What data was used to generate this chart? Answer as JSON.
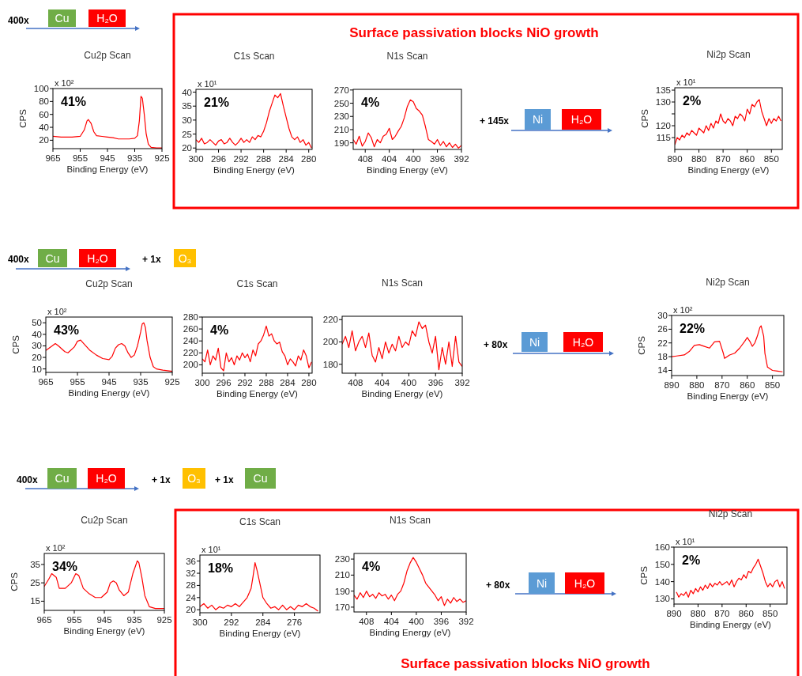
{
  "chart_data": [
    {
      "type": "other",
      "annotations": [
        "400x",
        "Cu",
        "H₂O",
        "+ 145x",
        "Ni",
        "H₂O",
        "Surface passivation blocks NiO growth"
      ]
    },
    {
      "type": "line",
      "title": "Cu2p Scan",
      "xlabel": "Binding Energy (eV)",
      "ylabel": "CPS",
      "annotations": [
        "41%",
        "x 10²"
      ],
      "xlim": [
        965,
        925
      ],
      "xticks": [
        965,
        955,
        945,
        935,
        925
      ],
      "ylim": [
        7,
        100
      ],
      "yticks": [
        20,
        40,
        60,
        80,
        100
      ],
      "x": [
        965,
        962,
        958,
        955,
        953.5,
        952.5,
        952,
        951,
        950,
        949,
        947,
        945,
        943,
        941,
        939,
        937,
        935,
        934,
        933.3,
        932.7,
        932.2,
        931.5,
        930.8,
        930,
        929,
        927,
        925
      ],
      "series": [
        {
          "color": "#ff0000",
          "values": [
            26,
            25,
            25,
            26,
            36,
            50,
            52,
            46,
            33,
            27,
            26,
            25,
            24,
            22,
            22,
            22,
            23,
            27,
            50,
            88,
            85,
            60,
            30,
            14,
            9,
            8,
            8
          ]
        }
      ]
    },
    {
      "type": "line",
      "title": "C1s Scan",
      "xlabel": "Binding Energy (eV)",
      "annotations": [
        "21%",
        "x 10¹"
      ],
      "xlim": [
        300,
        279.4
      ],
      "xticks": [
        300,
        296,
        292,
        288,
        284,
        280
      ],
      "ylim": [
        19.5,
        41
      ],
      "yticks": [
        20,
        25,
        30,
        35,
        40
      ],
      "x": [
        300,
        299.5,
        299,
        298.5,
        298,
        297.5,
        297,
        296.5,
        296,
        295.5,
        295,
        294.5,
        294,
        293.5,
        293,
        292.5,
        292,
        291.5,
        291,
        290.5,
        290,
        289.5,
        289,
        288.5,
        288,
        287.5,
        287,
        286.5,
        286,
        285.5,
        285,
        284.5,
        284,
        283.5,
        283,
        282.5,
        282,
        281.5,
        281,
        280.5,
        280,
        279.5
      ],
      "series": [
        {
          "color": "#ff0000",
          "values": [
            23,
            22,
            23.5,
            21.5,
            22,
            23,
            22,
            21,
            22.5,
            23,
            21.5,
            22,
            23.5,
            22,
            21,
            22,
            23.5,
            22,
            23,
            22,
            24,
            23,
            24.5,
            24,
            26,
            29,
            33,
            36,
            39,
            38,
            39.5,
            35,
            31,
            27,
            24,
            23,
            24,
            22,
            23,
            21,
            22,
            20
          ]
        }
      ]
    },
    {
      "type": "line",
      "title": "N1s Scan",
      "xlabel": "Binding Energy (eV)",
      "annotations": [
        "4%"
      ],
      "xlim": [
        410,
        392
      ],
      "xticks": [
        408,
        404,
        400,
        396,
        392
      ],
      "ylim": [
        180,
        271
      ],
      "yticks": [
        190,
        210,
        230,
        250,
        270
      ],
      "x": [
        410,
        409.5,
        409,
        408.5,
        408,
        407.5,
        407,
        406.5,
        406,
        405.5,
        405,
        404.5,
        404,
        403.5,
        403,
        402.5,
        402,
        401.5,
        401,
        400.5,
        400,
        399.5,
        399,
        398.5,
        398,
        397.5,
        397,
        396.5,
        396,
        395.5,
        395,
        394.5,
        394,
        393.5,
        393,
        392.5,
        392
      ],
      "series": [
        {
          "color": "#ff0000",
          "values": [
            195,
            188,
            200,
            185,
            192,
            205,
            198,
            184,
            195,
            190,
            200,
            203,
            212,
            195,
            200,
            208,
            215,
            228,
            245,
            255,
            252,
            242,
            238,
            232,
            215,
            195,
            192,
            188,
            195,
            186,
            192,
            184,
            190,
            183,
            188,
            182,
            186
          ]
        }
      ]
    },
    {
      "type": "line",
      "title": "Ni2p Scan",
      "xlabel": "Binding Energy (eV)",
      "ylabel": "CPS",
      "annotations": [
        "2%",
        "x 10¹"
      ],
      "xlim": [
        890,
        845.5
      ],
      "xticks": [
        890,
        880,
        870,
        860,
        850
      ],
      "ylim": [
        110,
        136
      ],
      "yticks": [
        115,
        120,
        {
          "value": 125,
          "label": null
        },
        130,
        135
      ],
      "x": [
        890,
        889,
        888,
        887,
        886,
        885,
        884,
        883,
        882,
        881,
        880,
        879,
        878,
        877,
        876,
        875,
        874,
        873,
        872,
        871,
        870,
        869,
        868,
        867,
        866,
        865,
        864,
        863,
        862,
        861,
        860,
        859,
        858,
        857,
        856,
        855,
        854,
        853,
        852,
        851,
        850,
        849,
        848,
        847,
        846
      ],
      "series": [
        {
          "color": "#ff0000",
          "values": [
            112,
            115,
            114,
            116,
            115,
            117,
            116,
            118,
            117,
            116,
            119,
            118,
            117,
            120,
            118,
            121,
            119,
            122,
            121,
            125,
            122,
            121,
            123,
            122,
            120,
            124,
            123,
            125,
            124,
            122,
            127,
            125,
            129,
            128,
            130,
            131,
            126,
            123,
            120,
            123,
            121,
            123,
            122,
            124,
            122
          ]
        }
      ]
    },
    {
      "type": "other",
      "annotations": [
        "400x",
        "Cu",
        "H₂O",
        "+ 1x",
        "O₃",
        "+ 80x",
        "Ni",
        "H₂O"
      ]
    },
    {
      "type": "line",
      "title": "Cu2p Scan",
      "xlabel": "Binding Energy (eV)",
      "ylabel": "CPS",
      "annotations": [
        "43%",
        "x 10²"
      ],
      "xlim": [
        965,
        925
      ],
      "xticks": [
        965,
        955,
        945,
        935,
        925
      ],
      "ylim": [
        7,
        55
      ],
      "yticks": [
        10,
        20,
        30,
        40,
        50
      ],
      "x": [
        965,
        963,
        962,
        961,
        959,
        958,
        956,
        955,
        954,
        953,
        951,
        949,
        947,
        945,
        944,
        943,
        942,
        941,
        940,
        939,
        938,
        937,
        936,
        935,
        934.5,
        934,
        933.5,
        933,
        932,
        931,
        930,
        928,
        925
      ],
      "series": [
        {
          "color": "#ff0000",
          "values": [
            26,
            30,
            32,
            30,
            25,
            24,
            29,
            34,
            35,
            32,
            26,
            22,
            19,
            18,
            21,
            28,
            31,
            32,
            30,
            24,
            20,
            22,
            30,
            42,
            49,
            50,
            46,
            35,
            20,
            12,
            10,
            9,
            8
          ]
        }
      ]
    },
    {
      "type": "line",
      "title": "C1s Scan",
      "xlabel": "Binding Energy (eV)",
      "annotations": [
        "4%"
      ],
      "xlim": [
        300,
        279.4
      ],
      "xticks": [
        300,
        296,
        292,
        288,
        284,
        280
      ],
      "ylim": [
        186,
        280
      ],
      "yticks": [
        200,
        220,
        240,
        260,
        280
      ],
      "x": [
        300,
        299.5,
        299,
        298.5,
        298,
        297.5,
        297,
        296.5,
        296,
        295.5,
        295,
        294.5,
        294,
        293.5,
        293,
        292.5,
        292,
        291.5,
        291,
        290.5,
        290,
        289.5,
        289,
        288.5,
        288,
        287.5,
        287,
        286.5,
        286,
        285.5,
        285,
        284.5,
        284,
        283.5,
        283,
        282.5,
        282,
        281.5,
        281,
        280.5,
        280,
        279.5
      ],
      "series": [
        {
          "color": "#ff0000",
          "values": [
            210,
            205,
            225,
            200,
            215,
            208,
            228,
            195,
            190,
            220,
            205,
            212,
            200,
            215,
            208,
            220,
            212,
            218,
            205,
            225,
            215,
            235,
            240,
            250,
            265,
            248,
            252,
            240,
            235,
            238,
            222,
            215,
            200,
            210,
            205,
            198,
            215,
            208,
            225,
            215,
            195,
            205
          ]
        }
      ]
    },
    {
      "type": "line",
      "title": "N1s Scan",
      "xlabel": "Binding Energy (eV)",
      "xlim": [
        410,
        392
      ],
      "xticks": [
        408,
        404,
        400,
        396,
        392
      ],
      "ylim": [
        172,
        223
      ],
      "yticks": [
        180,
        200,
        220
      ],
      "x": [
        410,
        409.5,
        409,
        408.5,
        408,
        407.5,
        407,
        406.5,
        406,
        405.5,
        405,
        404.5,
        404,
        403.5,
        403,
        402.5,
        402,
        401.5,
        401,
        400.5,
        400,
        399.5,
        399,
        398.5,
        398,
        397.5,
        397,
        396.5,
        396,
        395.5,
        395,
        394.5,
        394,
        393.5,
        393,
        392.5,
        392
      ],
      "series": [
        {
          "color": "#ff0000",
          "values": [
            198,
            205,
            195,
            210,
            192,
            200,
            205,
            195,
            208,
            188,
            182,
            195,
            185,
            200,
            190,
            198,
            192,
            205,
            195,
            200,
            197,
            210,
            205,
            218,
            212,
            215,
            200,
            190,
            205,
            175,
            195,
            180,
            200,
            178,
            205,
            182,
            178
          ]
        }
      ]
    },
    {
      "type": "line",
      "title": "Ni2p Scan",
      "xlabel": "Binding Energy (eV)",
      "ylabel": "CPS",
      "annotations": [
        "22%",
        "x 10²"
      ],
      "xlim": [
        890,
        845.5
      ],
      "xticks": [
        890,
        880,
        870,
        860,
        850
      ],
      "ylim": [
        12.5,
        30
      ],
      "yticks": [
        14,
        18,
        22,
        26,
        30
      ],
      "x": [
        890,
        888,
        885,
        883,
        881,
        879,
        877,
        875,
        873,
        871,
        869.5,
        869,
        867,
        865,
        863,
        861,
        860,
        859,
        858,
        857,
        856,
        855,
        854.5,
        853.5,
        853,
        852,
        850,
        848,
        846
      ],
      "series": [
        {
          "color": "#ff0000",
          "values": [
            18,
            18.2,
            18.5,
            19.5,
            21.3,
            21.5,
            21,
            20.5,
            22.3,
            22.5,
            19,
            17.5,
            18.5,
            19,
            20.5,
            22.5,
            23.6,
            22.5,
            21,
            22,
            24,
            26.5,
            27,
            24,
            19,
            15,
            14,
            13.8,
            13.6
          ]
        }
      ]
    },
    {
      "type": "other",
      "annotations": [
        "400x",
        "Cu",
        "H₂O",
        "+ 1x",
        "O₃",
        "+ 1x",
        "Cu",
        "+ 80x",
        "Ni",
        "H₂O",
        "Surface passivation blocks NiO growth"
      ]
    },
    {
      "type": "line",
      "title": "Cu2p Scan",
      "xlabel": "Binding Energy (eV)",
      "ylabel": "CPS",
      "annotations": [
        "34%",
        "x 10²"
      ],
      "xlim": [
        965,
        925
      ],
      "xticks": [
        965,
        955,
        945,
        935,
        925
      ],
      "ylim": [
        10,
        41
      ],
      "yticks": [
        15,
        25,
        35
      ],
      "x": [
        965,
        963.5,
        962.5,
        961,
        960,
        958,
        956,
        954.5,
        953.5,
        952,
        950,
        948,
        946,
        944,
        943,
        942,
        941,
        940,
        938.5,
        937,
        935.5,
        934,
        933.5,
        932.5,
        931.5,
        930,
        928,
        925
      ],
      "series": [
        {
          "color": "#ff0000",
          "values": [
            23,
            27,
            30,
            28,
            22,
            22,
            25,
            30,
            29,
            22,
            19,
            17,
            17,
            20,
            25,
            26,
            25,
            21,
            18,
            20,
            30,
            37,
            36,
            28,
            18,
            12,
            11,
            11
          ]
        }
      ]
    },
    {
      "type": "line",
      "title": "C1s Scan",
      "xlabel": "Binding Energy (eV)",
      "annotations": [
        "18%",
        "x 10¹"
      ],
      "xlim": [
        300,
        269.5
      ],
      "xticks": [
        300,
        292,
        284,
        276
      ],
      "ylim": [
        19,
        38
      ],
      "yticks": [
        20,
        24,
        28,
        32,
        36
      ],
      "x": [
        300,
        299,
        298,
        297,
        296,
        295,
        294,
        293,
        292,
        291,
        290,
        289,
        288,
        287,
        286.5,
        286,
        285.5,
        285,
        284,
        283,
        282,
        281,
        280,
        279,
        278,
        277,
        276,
        275,
        274,
        273,
        272,
        271,
        270
      ],
      "series": [
        {
          "color": "#ff0000",
          "values": [
            21,
            22,
            20.5,
            21.5,
            20,
            21,
            20.5,
            21.5,
            21,
            22,
            21,
            22.5,
            24,
            27,
            31,
            35.5,
            33,
            30,
            24,
            22,
            20.5,
            21,
            20,
            21.5,
            20,
            21,
            20,
            21.5,
            21,
            22,
            21,
            20.5,
            19.5
          ]
        }
      ]
    },
    {
      "type": "line",
      "title": "N1s Scan",
      "xlabel": "Binding Energy (eV)",
      "annotations": [
        "4%"
      ],
      "xlim": [
        410,
        392
      ],
      "xticks": [
        408,
        404,
        400,
        396,
        392
      ],
      "ylim": [
        164,
        237
      ],
      "yticks": [
        170,
        190,
        210,
        230
      ],
      "x": [
        410,
        409.5,
        409,
        408.5,
        408,
        407.5,
        407,
        406.5,
        406,
        405.5,
        405,
        404.5,
        404,
        403.5,
        403,
        402.5,
        402,
        401.5,
        401,
        400.5,
        400,
        399.5,
        399,
        398.5,
        398,
        397.5,
        397,
        396.5,
        396,
        395.5,
        395,
        394.5,
        394,
        393.5,
        393,
        392.5,
        392
      ],
      "series": [
        {
          "color": "#ff0000",
          "values": [
            185,
            180,
            188,
            182,
            190,
            183,
            186,
            181,
            188,
            184,
            186,
            180,
            185,
            178,
            186,
            190,
            200,
            215,
            225,
            232,
            226,
            218,
            210,
            200,
            195,
            190,
            185,
            178,
            183,
            172,
            180,
            175,
            182,
            177,
            180,
            176,
            178
          ]
        }
      ]
    },
    {
      "type": "line",
      "title": "Ni2p Scan",
      "xlabel": "Binding Energy (eV)",
      "ylabel": "CPS",
      "annotations": [
        "2%",
        "x 10¹"
      ],
      "xlim": [
        890,
        843
      ],
      "xticks": [
        890,
        880,
        870,
        860,
        850
      ],
      "ylim": [
        127,
        160
      ],
      "yticks": [
        130,
        140,
        150,
        160
      ],
      "x": [
        889,
        888,
        887,
        886,
        885,
        884,
        883,
        882,
        881,
        880,
        879,
        878,
        877,
        876,
        875,
        874,
        873,
        872,
        871,
        870,
        869,
        868,
        867,
        866,
        865,
        864,
        863,
        862,
        861,
        860,
        859,
        858,
        857,
        856,
        855,
        854,
        853,
        852,
        851,
        850,
        849,
        848,
        847,
        846,
        845,
        844
      ],
      "series": [
        {
          "color": "#ff0000",
          "values": [
            134,
            131,
            133,
            132,
            134,
            131,
            135,
            133,
            136,
            134,
            137,
            135,
            138,
            136,
            139,
            137,
            139,
            138,
            140,
            138,
            139,
            140,
            138,
            141,
            137,
            140,
            142,
            141,
            144,
            142,
            146,
            145,
            148,
            150,
            153,
            149,
            145,
            140,
            137,
            139,
            137,
            140,
            141,
            137,
            140,
            136
          ]
        }
      ]
    }
  ]
}
